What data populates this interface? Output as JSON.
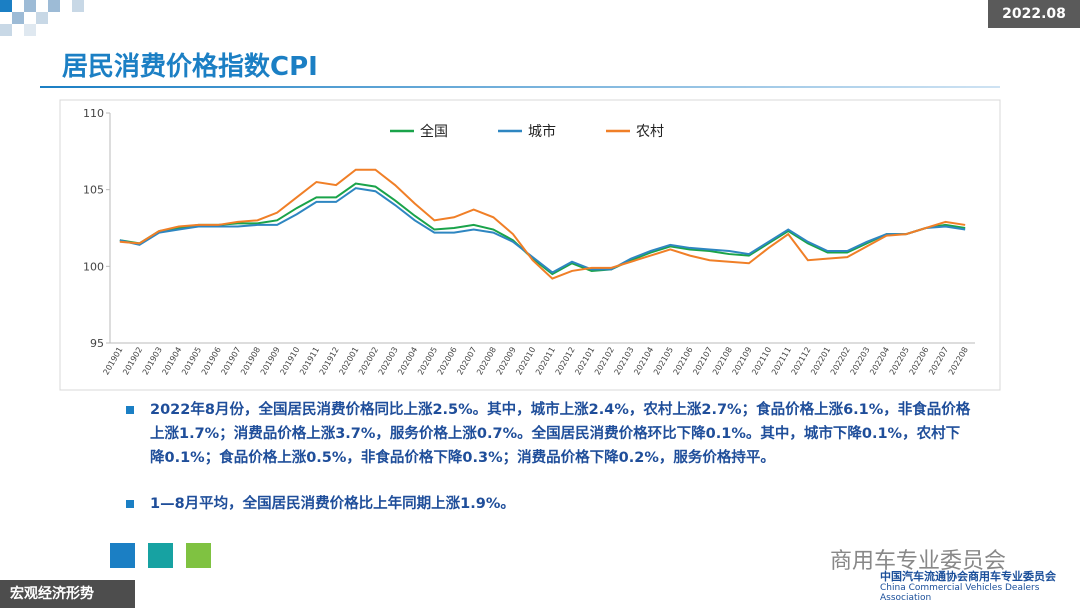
{
  "header": {
    "date": "2022.08",
    "title": "居民消费价格指数CPI"
  },
  "chart_data": {
    "type": "line",
    "categories": [
      "201901",
      "201902",
      "201903",
      "201904",
      "201905",
      "201906",
      "201907",
      "201908",
      "201909",
      "201910",
      "201911",
      "201912",
      "202001",
      "202002",
      "202003",
      "202004",
      "202005",
      "202006",
      "202007",
      "202008",
      "202009",
      "202010",
      "202011",
      "202012",
      "202101",
      "202102",
      "202103",
      "202104",
      "202105",
      "202106",
      "202107",
      "202108",
      "202109",
      "202110",
      "202111",
      "202112",
      "202201",
      "202202",
      "202203",
      "202204",
      "202205",
      "202206",
      "202207",
      "202208"
    ],
    "series": [
      {
        "name": "全国",
        "color": "#1aa34a",
        "values": [
          101.7,
          101.5,
          102.3,
          102.5,
          102.7,
          102.7,
          102.8,
          102.8,
          103.0,
          103.8,
          104.5,
          104.5,
          105.4,
          105.2,
          104.3,
          103.3,
          102.4,
          102.5,
          102.7,
          102.4,
          101.7,
          100.5,
          99.5,
          100.2,
          99.7,
          99.8,
          100.4,
          100.9,
          101.3,
          101.1,
          101.0,
          100.8,
          100.7,
          101.5,
          102.3,
          101.5,
          100.9,
          100.9,
          101.5,
          102.1,
          102.1,
          102.5,
          102.7,
          102.5
        ]
      },
      {
        "name": "城市",
        "color": "#2e86c1",
        "values": [
          101.7,
          101.4,
          102.2,
          102.4,
          102.6,
          102.6,
          102.6,
          102.7,
          102.7,
          103.4,
          104.2,
          104.2,
          105.1,
          104.9,
          104.0,
          103.0,
          102.2,
          102.2,
          102.4,
          102.2,
          101.6,
          100.6,
          99.6,
          100.3,
          99.8,
          99.8,
          100.5,
          101.0,
          101.4,
          101.2,
          101.1,
          101.0,
          100.8,
          101.6,
          102.4,
          101.6,
          101.0,
          101.0,
          101.6,
          102.1,
          102.1,
          102.5,
          102.6,
          102.4
        ]
      },
      {
        "name": "农村",
        "color": "#f07f27",
        "values": [
          101.6,
          101.5,
          102.3,
          102.6,
          102.7,
          102.7,
          102.9,
          103.0,
          103.5,
          104.5,
          105.5,
          105.3,
          106.3,
          106.3,
          105.3,
          104.1,
          103.0,
          103.2,
          103.7,
          103.2,
          102.1,
          100.4,
          99.2,
          99.7,
          99.9,
          99.9,
          100.3,
          100.7,
          101.1,
          100.7,
          100.4,
          100.3,
          100.2,
          101.2,
          102.1,
          100.4,
          100.5,
          100.6,
          101.3,
          102.0,
          102.1,
          102.5,
          102.9,
          102.7
        ]
      }
    ],
    "ylim": [
      95,
      110
    ],
    "yticks": [
      95,
      100,
      105,
      110
    ],
    "grid": false
  },
  "notes": [
    "2022年8月份，全国居民消费价格同比上涨2.5%。其中，城市上涨2.4%，农村上涨2.7%；食品价格上涨6.1%，非食品价格上涨1.7%；消费品价格上涨3.7%，服务价格上涨0.7%。全国居民消费价格环比下降0.1%。其中，城市下降0.1%，农村下降0.1%；食品价格上涨0.5%，非食品价格下降0.3%；消费品价格下降0.2%，服务价格持平。",
    "1—8月平均，全国居民消费价格比上年同期上涨1.9%。"
  ],
  "footer": {
    "section": "宏观经济形势",
    "brand": "商用车专业委员会",
    "org_cn": "中国汽车流通协会商用车专业委员会",
    "org_en": "China Commercial Vehicles Dealers Association"
  }
}
